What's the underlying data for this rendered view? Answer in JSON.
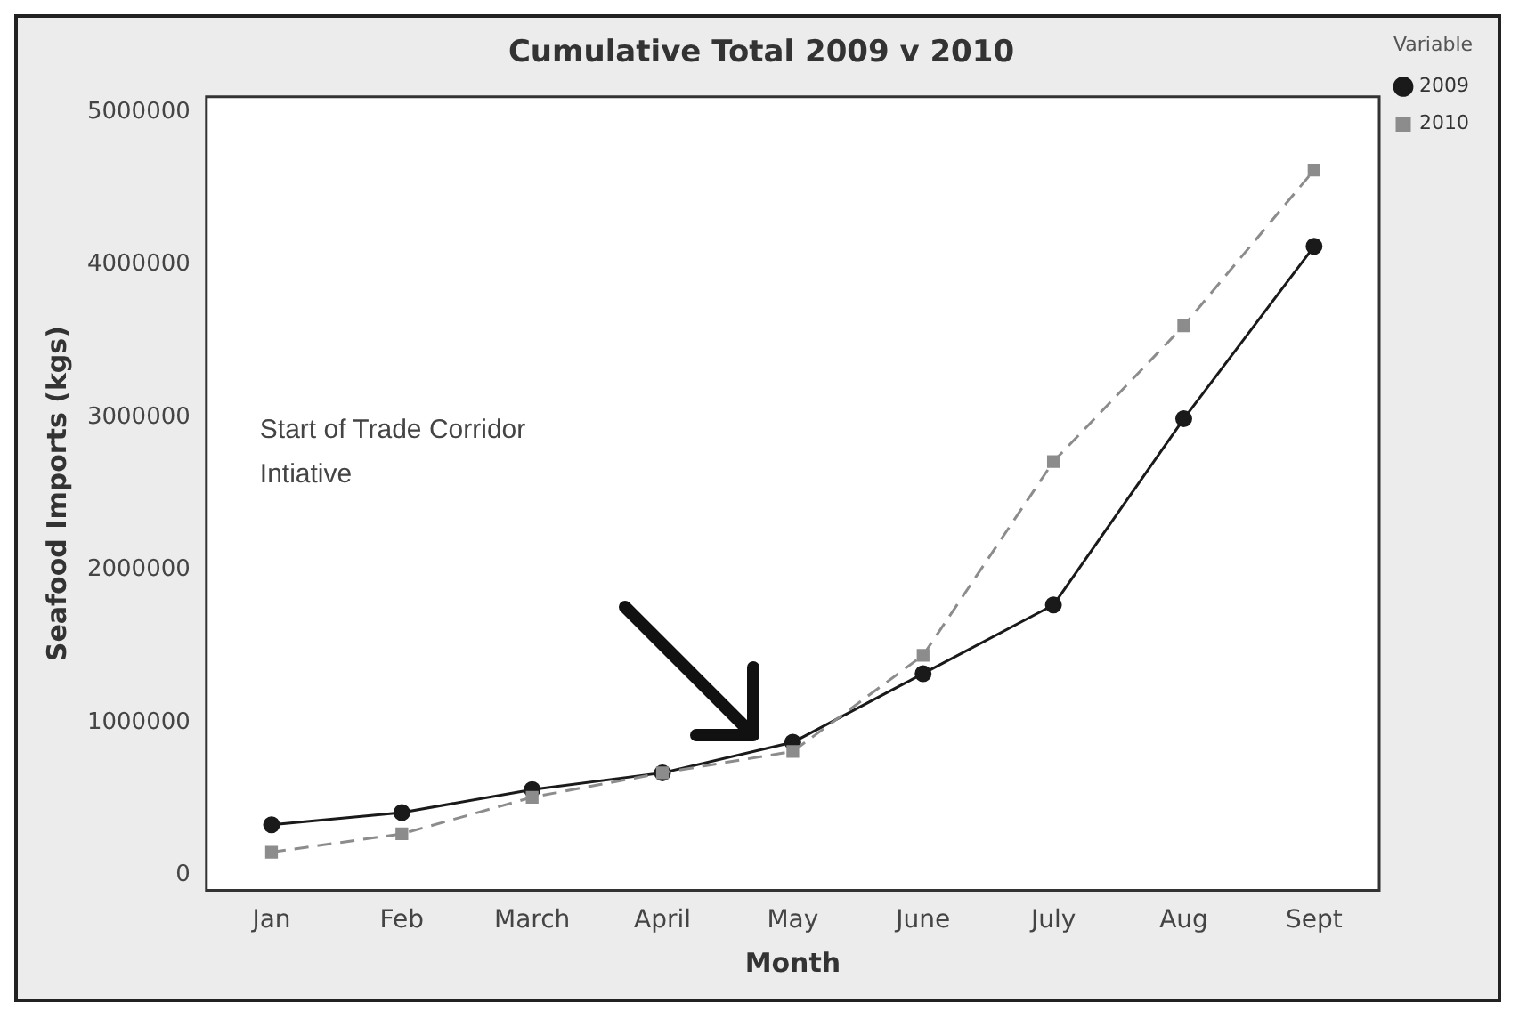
{
  "chart_data": {
    "type": "line",
    "title": "Cumulative Total 2009 v 2010",
    "xlabel": "Month",
    "ylabel": "Seafood Imports (kgs)",
    "legend_title": "Variable",
    "categories": [
      "Jan",
      "Feb",
      "March",
      "April",
      "May",
      "June",
      "July",
      "Aug",
      "Sept"
    ],
    "series": [
      {
        "name": "2009",
        "color": "#1a1a1a",
        "marker": "circle",
        "line_style": "solid",
        "values": [
          330000,
          410000,
          560000,
          670000,
          870000,
          1320000,
          1770000,
          2990000,
          4120000
        ]
      },
      {
        "name": "2010",
        "color": "#8c8c8c",
        "marker": "square",
        "line_style": "dashed",
        "values": [
          150000,
          270000,
          510000,
          670000,
          810000,
          1440000,
          2710000,
          3600000,
          4620000
        ]
      }
    ],
    "ylim": [
      -100000,
      5100000
    ],
    "yticks": [
      0,
      1000000,
      2000000,
      3000000,
      4000000,
      5000000
    ],
    "grid": false,
    "legend": "top right",
    "annotations": [
      "Start of Trade Corridor\nIntiative"
    ]
  }
}
